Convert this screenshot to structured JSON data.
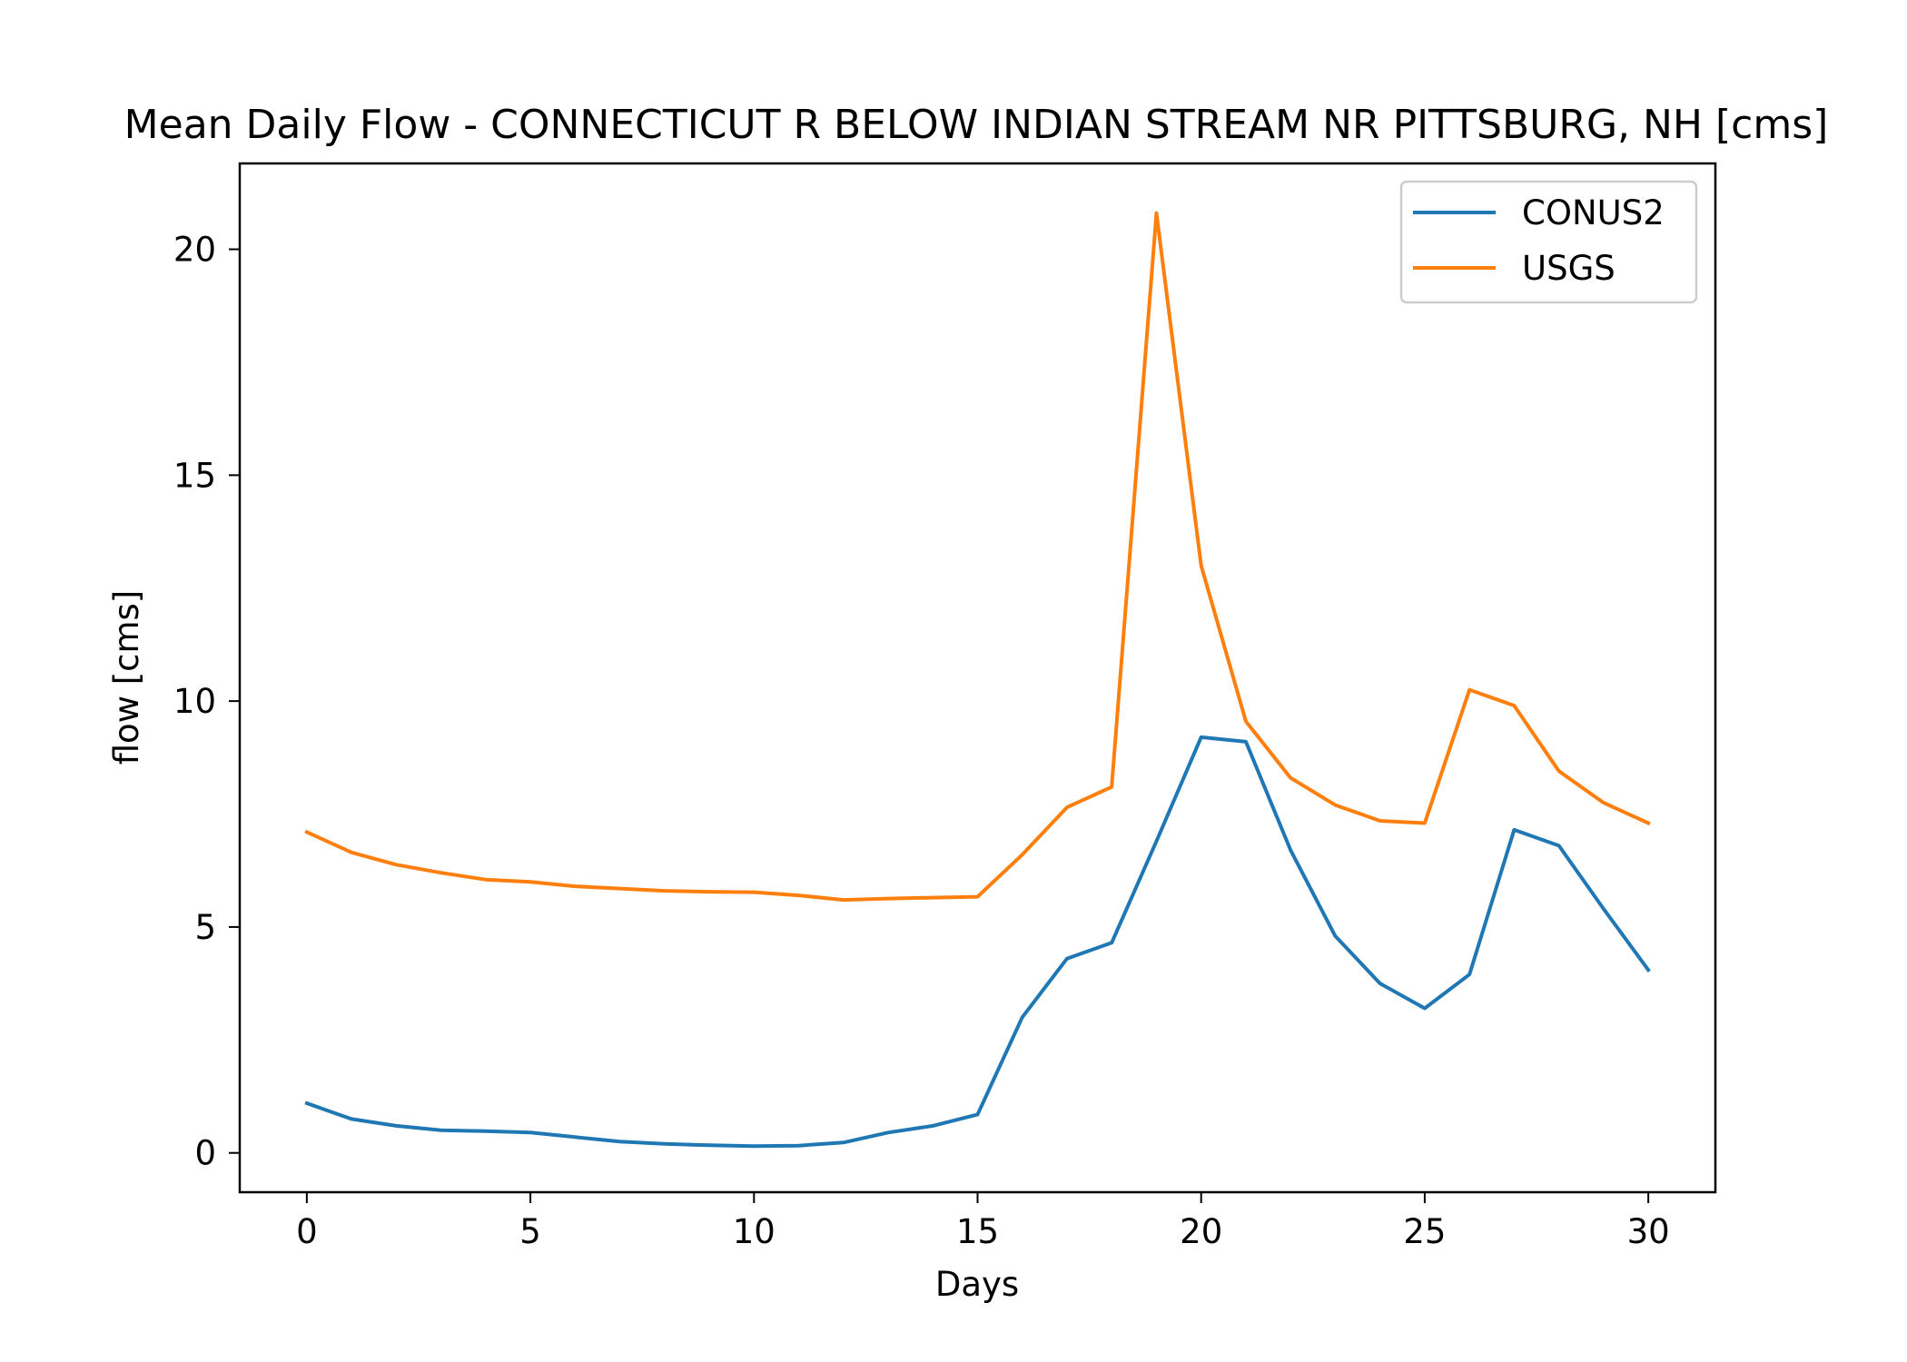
{
  "chart_data": {
    "type": "line",
    "title": "Mean Daily Flow - CONNECTICUT R BELOW INDIAN STREAM NR PITTSBURG, NH [cms]",
    "xlabel": "Days",
    "ylabel": "flow [cms]",
    "xlim": [
      -1.5,
      31.5
    ],
    "ylim": [
      -0.87,
      21.9
    ],
    "xticks": [
      0,
      5,
      10,
      15,
      20,
      25,
      30
    ],
    "yticks": [
      0,
      5,
      10,
      15,
      20
    ],
    "grid": false,
    "legend_position": "top-right",
    "x": [
      0,
      1,
      2,
      3,
      4,
      5,
      6,
      7,
      8,
      9,
      10,
      11,
      12,
      13,
      14,
      15,
      16,
      17,
      18,
      19,
      20,
      21,
      22,
      23,
      24,
      25,
      26,
      27,
      28,
      29,
      30
    ],
    "series": [
      {
        "name": "CONUS2",
        "color": "#1f77b4",
        "values": [
          1.1,
          0.75,
          0.6,
          0.5,
          0.48,
          0.45,
          0.35,
          0.25,
          0.2,
          0.17,
          0.15,
          0.16,
          0.23,
          0.45,
          0.6,
          0.85,
          3.0,
          4.3,
          4.65,
          6.9,
          9.2,
          9.1,
          6.7,
          4.8,
          3.75,
          3.2,
          3.95,
          7.15,
          6.8,
          5.4,
          4.05
        ]
      },
      {
        "name": "USGS",
        "color": "#ff7f0e",
        "values": [
          7.1,
          6.65,
          6.38,
          6.2,
          6.05,
          6.0,
          5.9,
          5.85,
          5.8,
          5.78,
          5.77,
          5.7,
          5.6,
          5.63,
          5.65,
          5.67,
          6.6,
          7.65,
          8.1,
          20.8,
          13.0,
          9.55,
          8.3,
          7.7,
          7.35,
          7.3,
          10.25,
          9.9,
          8.45,
          7.75,
          7.3
        ]
      }
    ]
  }
}
